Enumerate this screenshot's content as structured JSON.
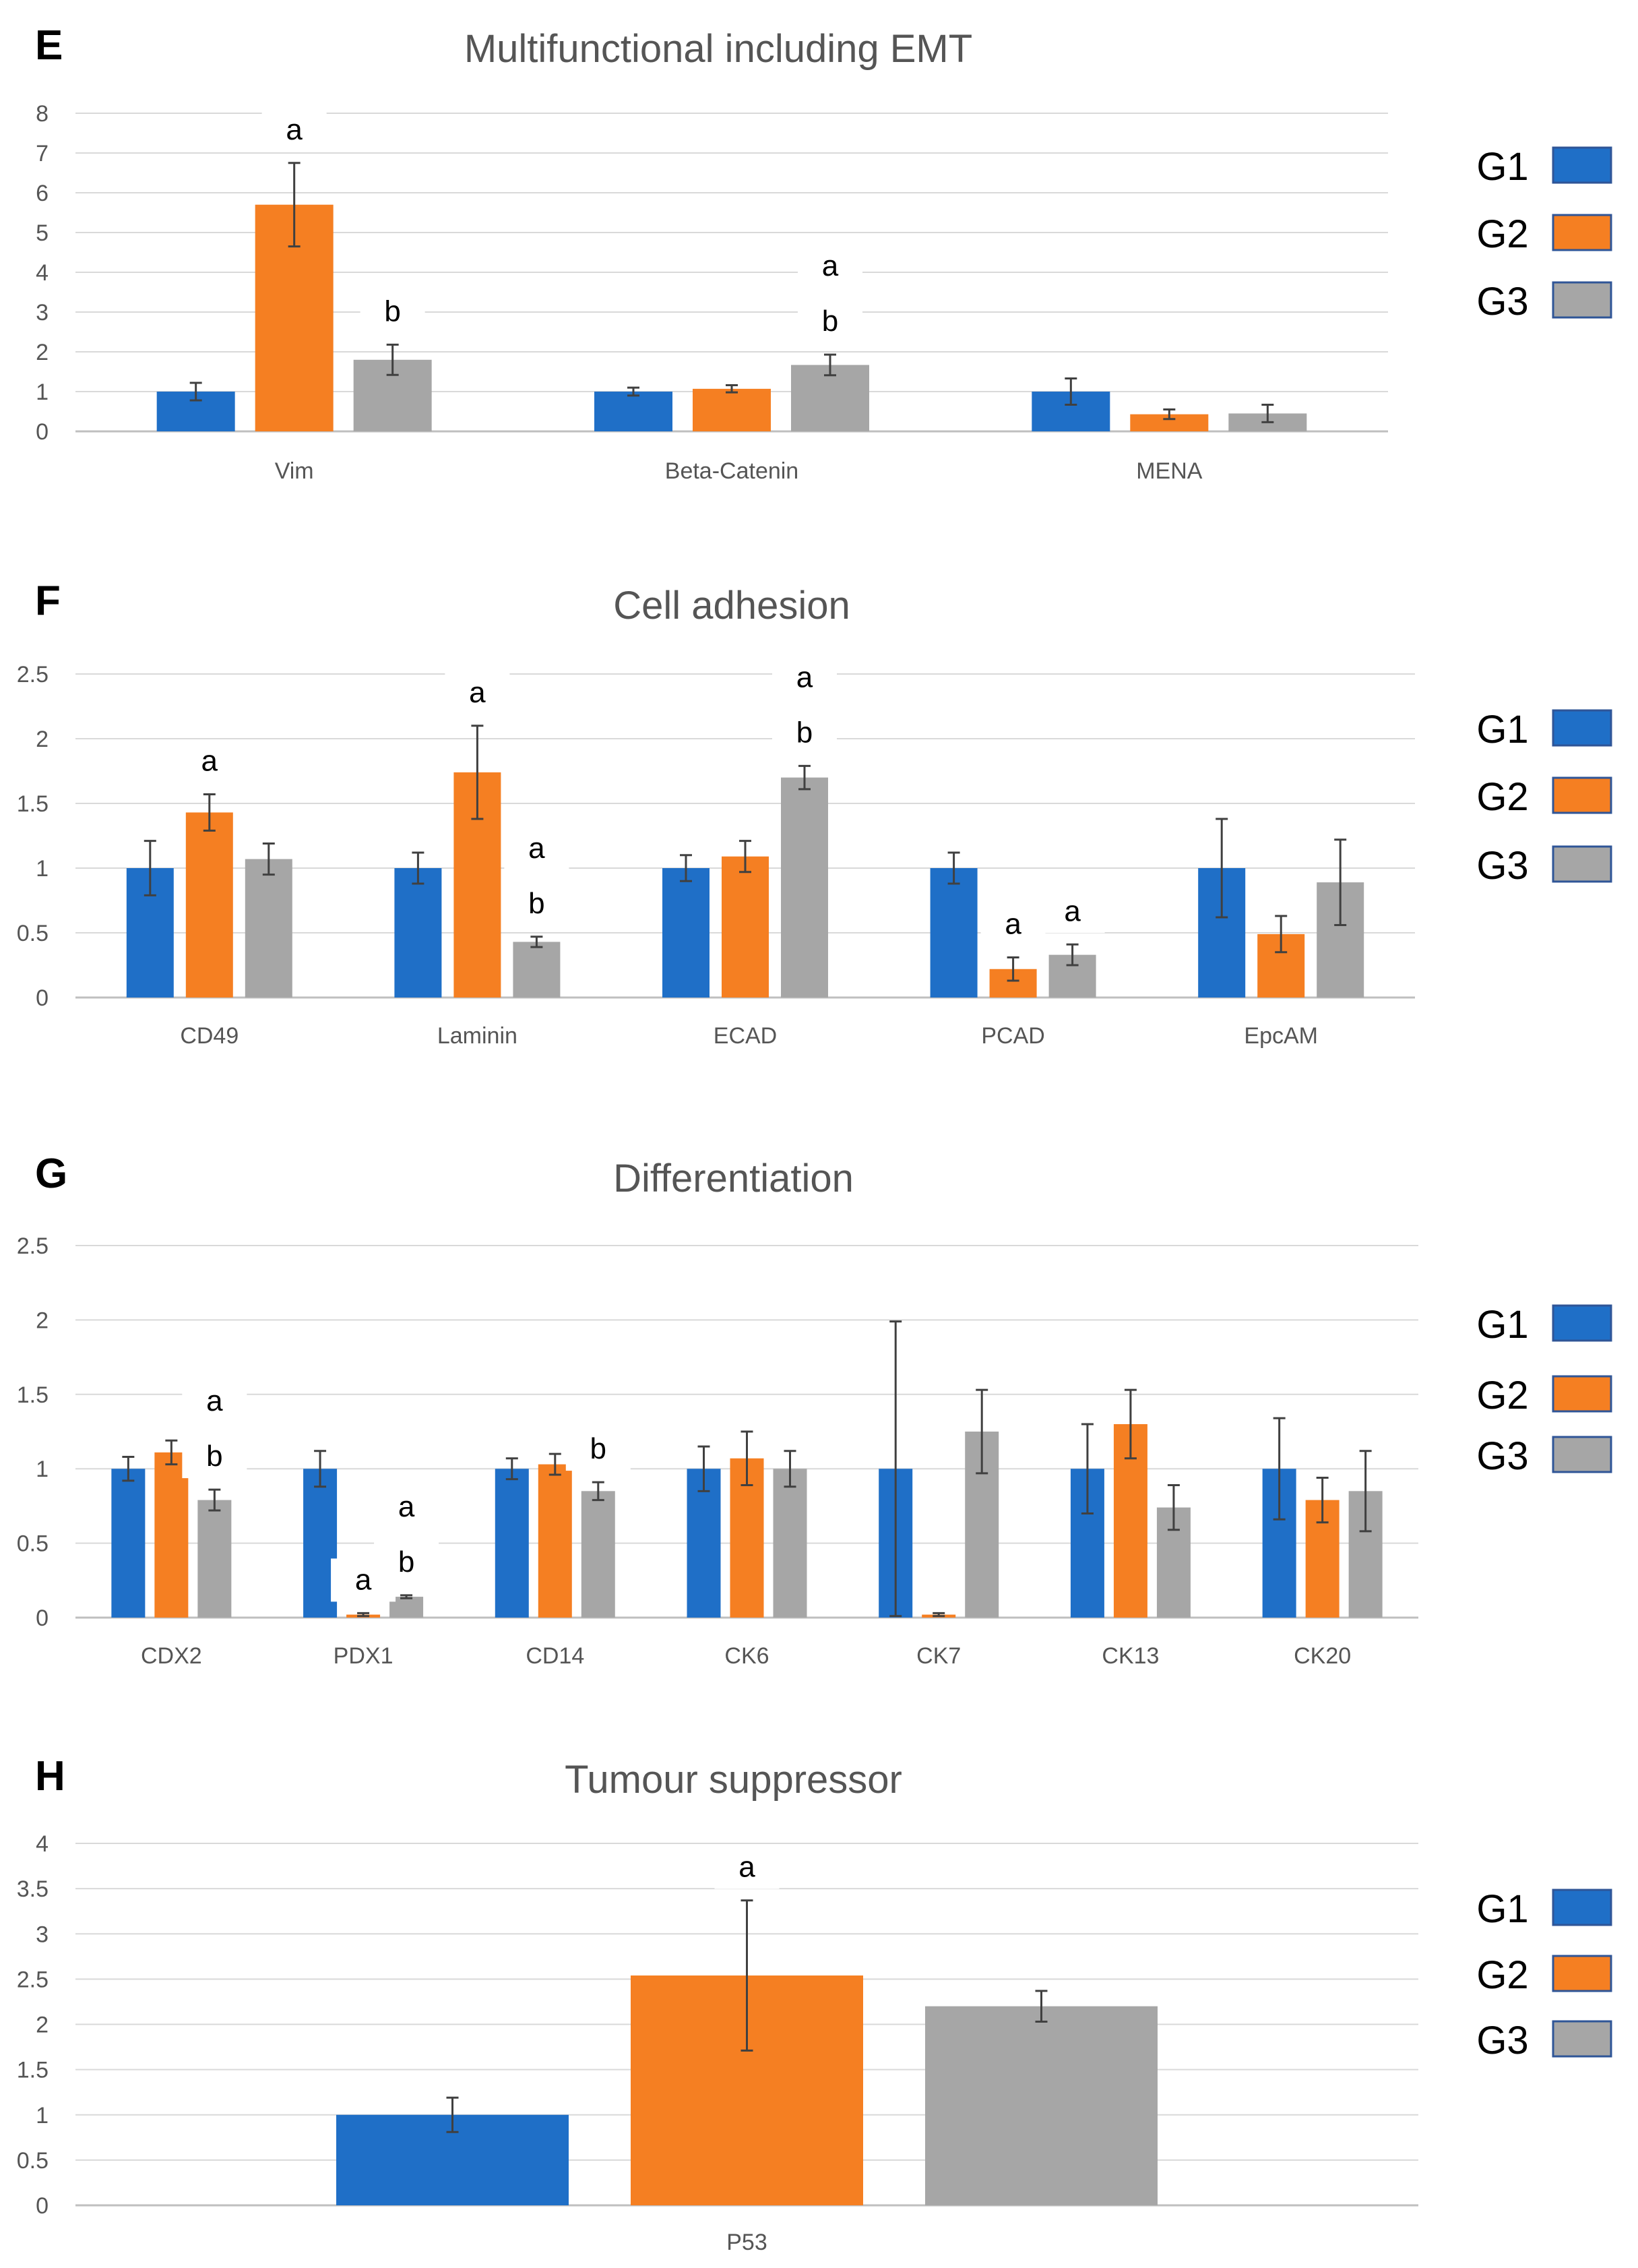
{
  "groups": [
    {
      "name": "G1",
      "color": "#1f6fc7"
    },
    {
      "name": "G2",
      "color": "#f57f22"
    },
    {
      "name": "G3",
      "color": "#a6a6a6"
    }
  ],
  "chart_data": [
    {
      "type": "bar",
      "panel_label": "E",
      "title": "Multifunctional including EMT",
      "xlabel": "",
      "ylabel": "",
      "ylim": [
        0,
        8
      ],
      "yticks": [
        "0",
        "1",
        "2",
        "3",
        "4",
        "5",
        "6",
        "7",
        "8"
      ],
      "grid": true,
      "legend": "right",
      "categories": [
        "Vim",
        "Beta-Catenin",
        "MENA"
      ],
      "series": [
        {
          "name": "G1",
          "values": [
            1.0,
            1.0,
            1.0
          ],
          "errors": [
            0.22,
            0.1,
            0.33
          ]
        },
        {
          "name": "G2",
          "values": [
            5.7,
            1.07,
            0.43
          ],
          "errors": [
            1.05,
            0.09,
            0.12
          ]
        },
        {
          "name": "G3",
          "values": [
            1.8,
            1.67,
            0.45
          ],
          "errors": [
            0.38,
            0.26,
            0.22
          ]
        }
      ],
      "annotations": [
        {
          "category": 0,
          "series": 1,
          "text": "a"
        },
        {
          "category": 0,
          "series": 2,
          "text": "b"
        },
        {
          "category": 1,
          "series": 2,
          "text": "a"
        },
        {
          "category": 1,
          "series": 2,
          "text": "b"
        }
      ]
    },
    {
      "type": "bar",
      "panel_label": "F",
      "title": "Cell adhesion",
      "xlabel": "",
      "ylabel": "",
      "ylim": [
        0,
        2.5
      ],
      "yticks": [
        "0",
        "0.5",
        "1",
        "1.5",
        "2",
        "2.5"
      ],
      "grid": true,
      "legend": "right",
      "categories": [
        "CD49",
        "Laminin",
        "ECAD",
        "PCAD",
        "EpcAM"
      ],
      "series": [
        {
          "name": "G1",
          "values": [
            1.0,
            1.0,
            1.0,
            1.0,
            1.0
          ],
          "errors": [
            0.21,
            0.12,
            0.1,
            0.12,
            0.38
          ]
        },
        {
          "name": "G2",
          "values": [
            1.43,
            1.74,
            1.09,
            0.22,
            0.49
          ],
          "errors": [
            0.14,
            0.36,
            0.12,
            0.09,
            0.14
          ]
        },
        {
          "name": "G3",
          "values": [
            1.07,
            0.43,
            1.7,
            0.33,
            0.89
          ],
          "errors": [
            0.12,
            0.04,
            0.09,
            0.08,
            0.33
          ]
        }
      ],
      "annotations": [
        {
          "category": 0,
          "series": 1,
          "text": "a"
        },
        {
          "category": 1,
          "series": 1,
          "text": "a"
        },
        {
          "category": 1,
          "series": 2,
          "text": "a"
        },
        {
          "category": 1,
          "series": 2,
          "text": "b"
        },
        {
          "category": 2,
          "series": 2,
          "text": "a"
        },
        {
          "category": 2,
          "series": 2,
          "text": "b"
        },
        {
          "category": 3,
          "series": 1,
          "text": "a"
        },
        {
          "category": 3,
          "series": 2,
          "text": "a"
        }
      ]
    },
    {
      "type": "bar",
      "panel_label": "G",
      "title": "Differentiation",
      "xlabel": "",
      "ylabel": "",
      "ylim": [
        0,
        2.5
      ],
      "yticks": [
        "0",
        "0.5",
        "1",
        "1.5",
        "2",
        "2.5"
      ],
      "grid": true,
      "legend": "right",
      "categories": [
        "CDX2",
        "PDX1",
        "CD14",
        "CK6",
        "CK7",
        "CK13",
        "CK20"
      ],
      "series": [
        {
          "name": "G1",
          "values": [
            1.0,
            1.0,
            1.0,
            1.0,
            1.0,
            1.0,
            1.0
          ],
          "errors": [
            0.08,
            0.12,
            0.07,
            0.15,
            0.99,
            0.3,
            0.34
          ]
        },
        {
          "name": "G2",
          "values": [
            1.11,
            0.02,
            1.03,
            1.07,
            0.02,
            1.3,
            0.79
          ],
          "errors": [
            0.08,
            0.01,
            0.07,
            0.18,
            0.01,
            0.23,
            0.15
          ]
        },
        {
          "name": "G3",
          "values": [
            0.79,
            0.14,
            0.85,
            1.0,
            1.25,
            0.74,
            0.85
          ],
          "errors": [
            0.07,
            0.01,
            0.06,
            0.12,
            0.28,
            0.15,
            0.27
          ]
        }
      ],
      "annotations": [
        {
          "category": 0,
          "series": 2,
          "text": "a"
        },
        {
          "category": 0,
          "series": 2,
          "text": "b"
        },
        {
          "category": 1,
          "series": 1,
          "text": "a"
        },
        {
          "category": 1,
          "series": 2,
          "text": "a"
        },
        {
          "category": 1,
          "series": 2,
          "text": "b"
        },
        {
          "category": 2,
          "series": 2,
          "text": "b"
        }
      ]
    },
    {
      "type": "bar",
      "panel_label": "H",
      "title": "Tumour suppressor",
      "xlabel": "",
      "ylabel": "",
      "ylim": [
        0,
        4
      ],
      "yticks": [
        "0",
        "0.5",
        "1",
        "1.5",
        "2",
        "2.5",
        "3",
        "3.5",
        "4"
      ],
      "grid": true,
      "legend": "right",
      "categories": [
        "P53"
      ],
      "series": [
        {
          "name": "G1",
          "values": [
            1.0
          ],
          "errors": [
            0.19
          ]
        },
        {
          "name": "G2",
          "values": [
            2.54
          ],
          "errors": [
            0.83
          ]
        },
        {
          "name": "G3",
          "values": [
            2.2
          ],
          "errors": [
            0.17
          ]
        }
      ],
      "annotations": [
        {
          "category": 0,
          "series": 1,
          "text": "a"
        }
      ]
    }
  ]
}
